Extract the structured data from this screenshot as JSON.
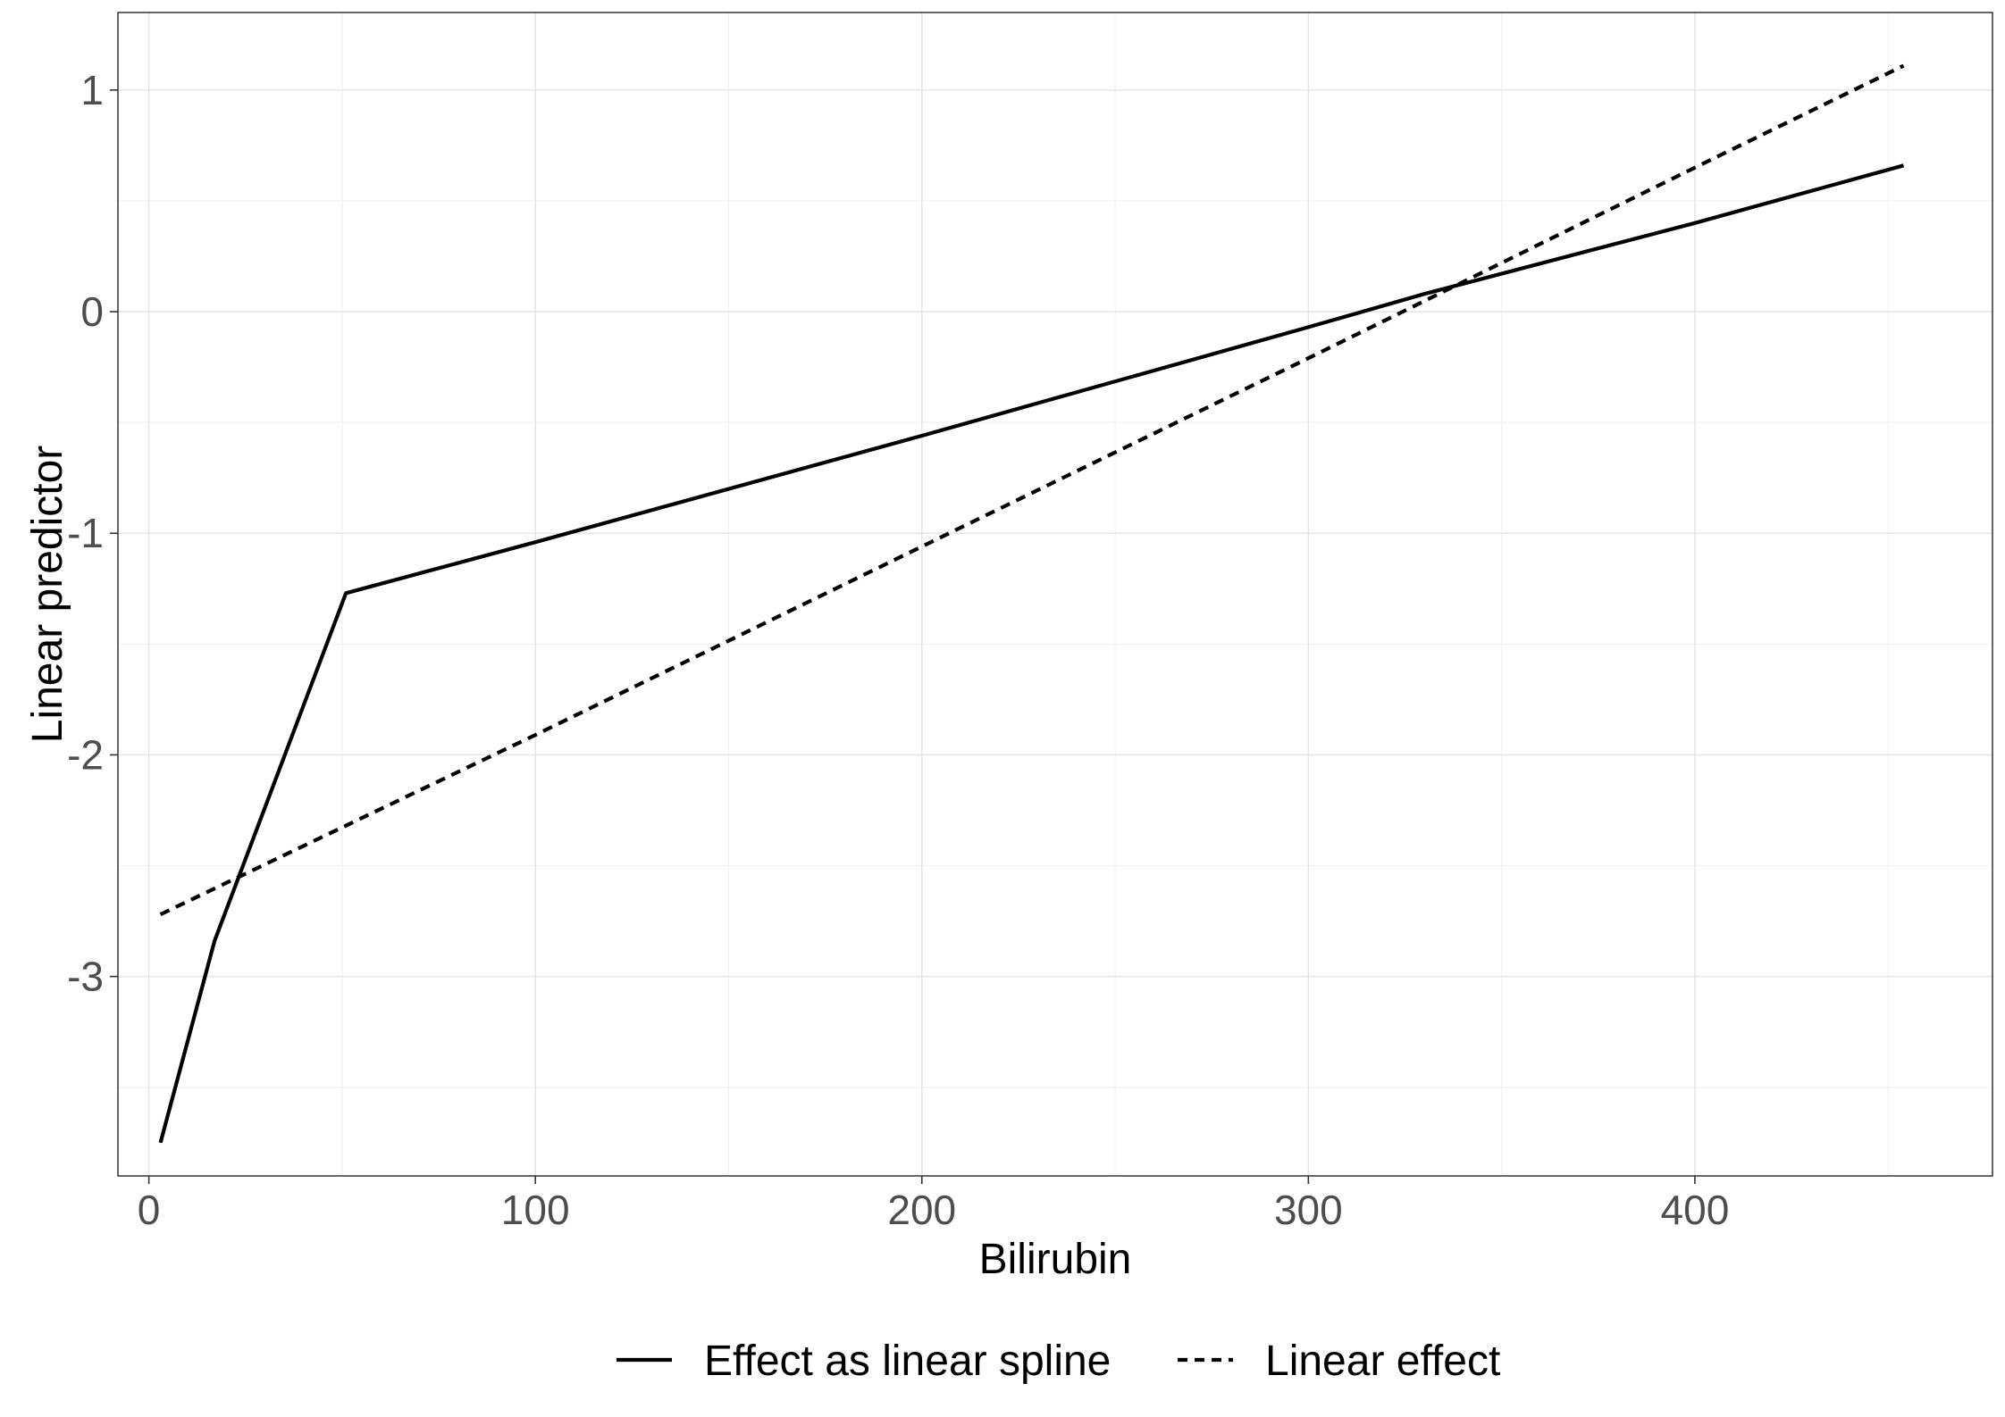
{
  "chart_data": {
    "type": "line",
    "xlabel": "Bilirubin",
    "ylabel": "Linear predictor",
    "xlim": [
      -8,
      477
    ],
    "ylim": [
      -3.9,
      1.35
    ],
    "grid": true,
    "legend_position": "bottom",
    "x_ticks": [
      0,
      100,
      200,
      300,
      400
    ],
    "x_tick_labels": [
      "0",
      "100",
      "200",
      "300",
      "400"
    ],
    "y_ticks": [
      -3,
      -2,
      -1,
      0,
      1
    ],
    "y_tick_labels": [
      "-3",
      "-2",
      "-1",
      "0",
      "1"
    ],
    "series": [
      {
        "name": "Effect as linear spline",
        "linetype": "solid",
        "color": "#000000",
        "x": [
          3,
          17,
          51,
          100,
          200,
          300,
          330,
          400,
          454
        ],
        "y": [
          -3.75,
          -2.84,
          -1.27,
          -1.04,
          -0.56,
          -0.07,
          0.08,
          0.4,
          0.66
        ]
      },
      {
        "name": "Linear effect",
        "linetype": "dashed",
        "color": "#000000",
        "x": [
          3,
          100,
          200,
          300,
          400,
          454
        ],
        "y": [
          -2.72,
          -1.91,
          -1.06,
          -0.21,
          0.65,
          1.11
        ]
      }
    ]
  }
}
